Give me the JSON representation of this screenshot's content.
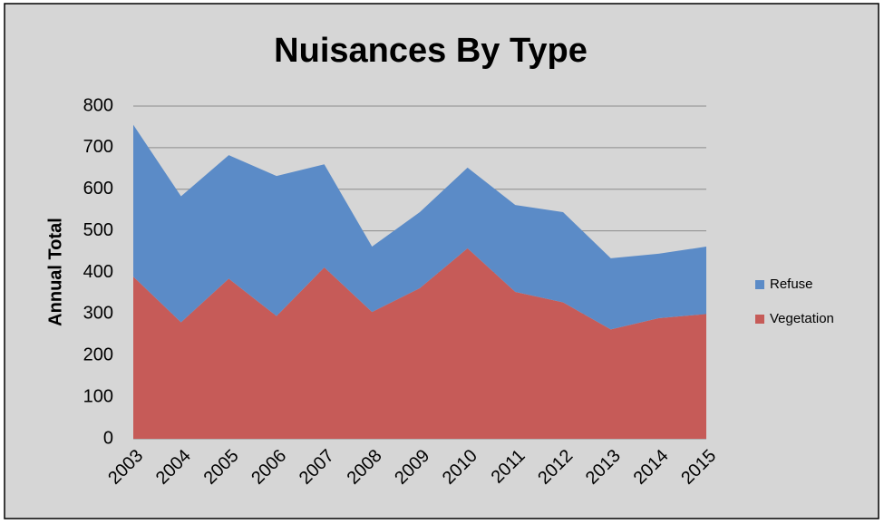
{
  "chart_data": {
    "type": "stacked_area",
    "title": "Nuisances By Type",
    "y_label": "Annual Total",
    "categories": [
      "2003",
      "2004",
      "2005",
      "2006",
      "2007",
      "2008",
      "2009",
      "2010",
      "2011",
      "2012",
      "2013",
      "2014",
      "2015"
    ],
    "series": [
      {
        "name": "Vegetation",
        "color": "#c65b58",
        "values": [
          390,
          280,
          385,
          295,
          412,
          305,
          362,
          458,
          353,
          328,
          263,
          290,
          300
        ]
      },
      {
        "name": "Refuse",
        "color": "#5b8bc7",
        "values": [
          365,
          303,
          297,
          337,
          248,
          157,
          183,
          194,
          209,
          217,
          171,
          155,
          162
        ]
      }
    ],
    "ylim": [
      0,
      800
    ],
    "yticks": [
      0,
      100,
      200,
      300,
      400,
      500,
      600,
      700,
      800
    ],
    "grid": true,
    "legend": "right"
  }
}
